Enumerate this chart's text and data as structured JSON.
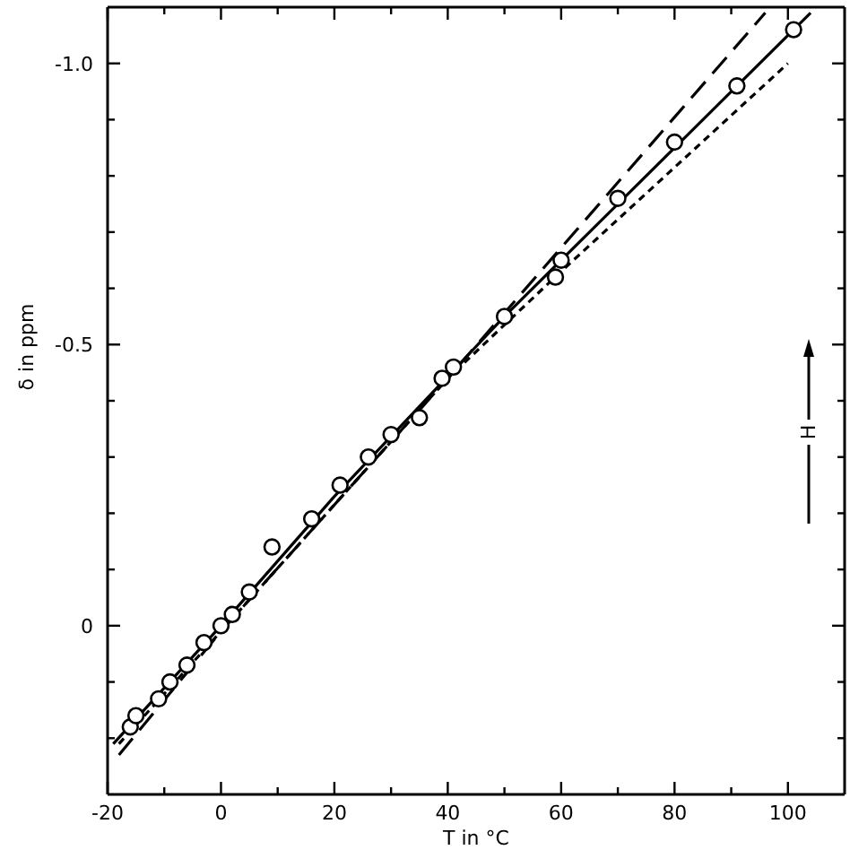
{
  "chart_data": {
    "type": "line",
    "xlabel": "T in °C",
    "ylabel": "δ in ppm",
    "annotations": [
      "H"
    ],
    "xlim": [
      -20,
      110
    ],
    "ylim": [
      0.3,
      -1.1
    ],
    "xticks": [
      -20,
      {
        "value": -10,
        "label": null
      },
      0,
      {
        "value": 10,
        "label": null
      },
      20,
      {
        "value": 30,
        "label": null
      },
      40,
      {
        "value": 50,
        "label": null
      },
      60,
      {
        "value": 70,
        "label": null
      },
      80,
      {
        "value": 90,
        "label": null
      },
      100
    ],
    "yticks": [
      {
        "value": 0.2,
        "label": null
      },
      {
        "value": 0.1,
        "label": null
      },
      0,
      {
        "value": -0.1,
        "label": null
      },
      {
        "value": -0.2,
        "label": null
      },
      {
        "value": -0.3,
        "label": null
      },
      {
        "value": -0.4,
        "label": null
      },
      -0.5,
      {
        "value": -0.6,
        "label": null
      },
      {
        "value": -0.7,
        "label": null
      },
      {
        "value": -0.8,
        "label": null
      },
      {
        "value": -0.9,
        "label": null
      },
      {
        "value": -1,
        "label": "-1.0"
      }
    ],
    "series": [
      {
        "color": "#000000",
        "line_style": "solid",
        "x": [
          -19,
          0,
          20,
          50,
          104
        ],
        "values": [
          0.21,
          0.0,
          -0.23,
          -0.55,
          -1.09
        ]
      },
      {
        "color": "#000000",
        "line_style": "dashed",
        "x": [
          -18,
          0,
          40,
          96
        ],
        "values": [
          0.23,
          0.01,
          -0.44,
          -1.09
        ]
      },
      {
        "color": "#000000",
        "line_style": "dotted",
        "x": [
          -18,
          0,
          40,
          60,
          100
        ],
        "values": [
          0.21,
          0.01,
          -0.44,
          -0.63,
          -1.0
        ]
      },
      {
        "type": "scatter",
        "color": "#000000",
        "marker": "circle",
        "x": [
          -16,
          -15,
          -11,
          -9,
          -6,
          -3,
          0,
          2,
          5,
          9,
          16,
          21,
          26,
          30,
          35,
          39,
          41,
          50,
          59,
          60,
          70,
          80,
          91,
          101
        ],
        "values": [
          0.18,
          0.16,
          0.13,
          0.1,
          0.07,
          0.03,
          0.0,
          -0.02,
          -0.06,
          -0.14,
          -0.19,
          -0.25,
          -0.3,
          -0.34,
          -0.37,
          -0.44,
          -0.46,
          -0.55,
          -0.62,
          -0.65,
          -0.76,
          -0.86,
          -0.96,
          -1.06
        ]
      }
    ]
  }
}
